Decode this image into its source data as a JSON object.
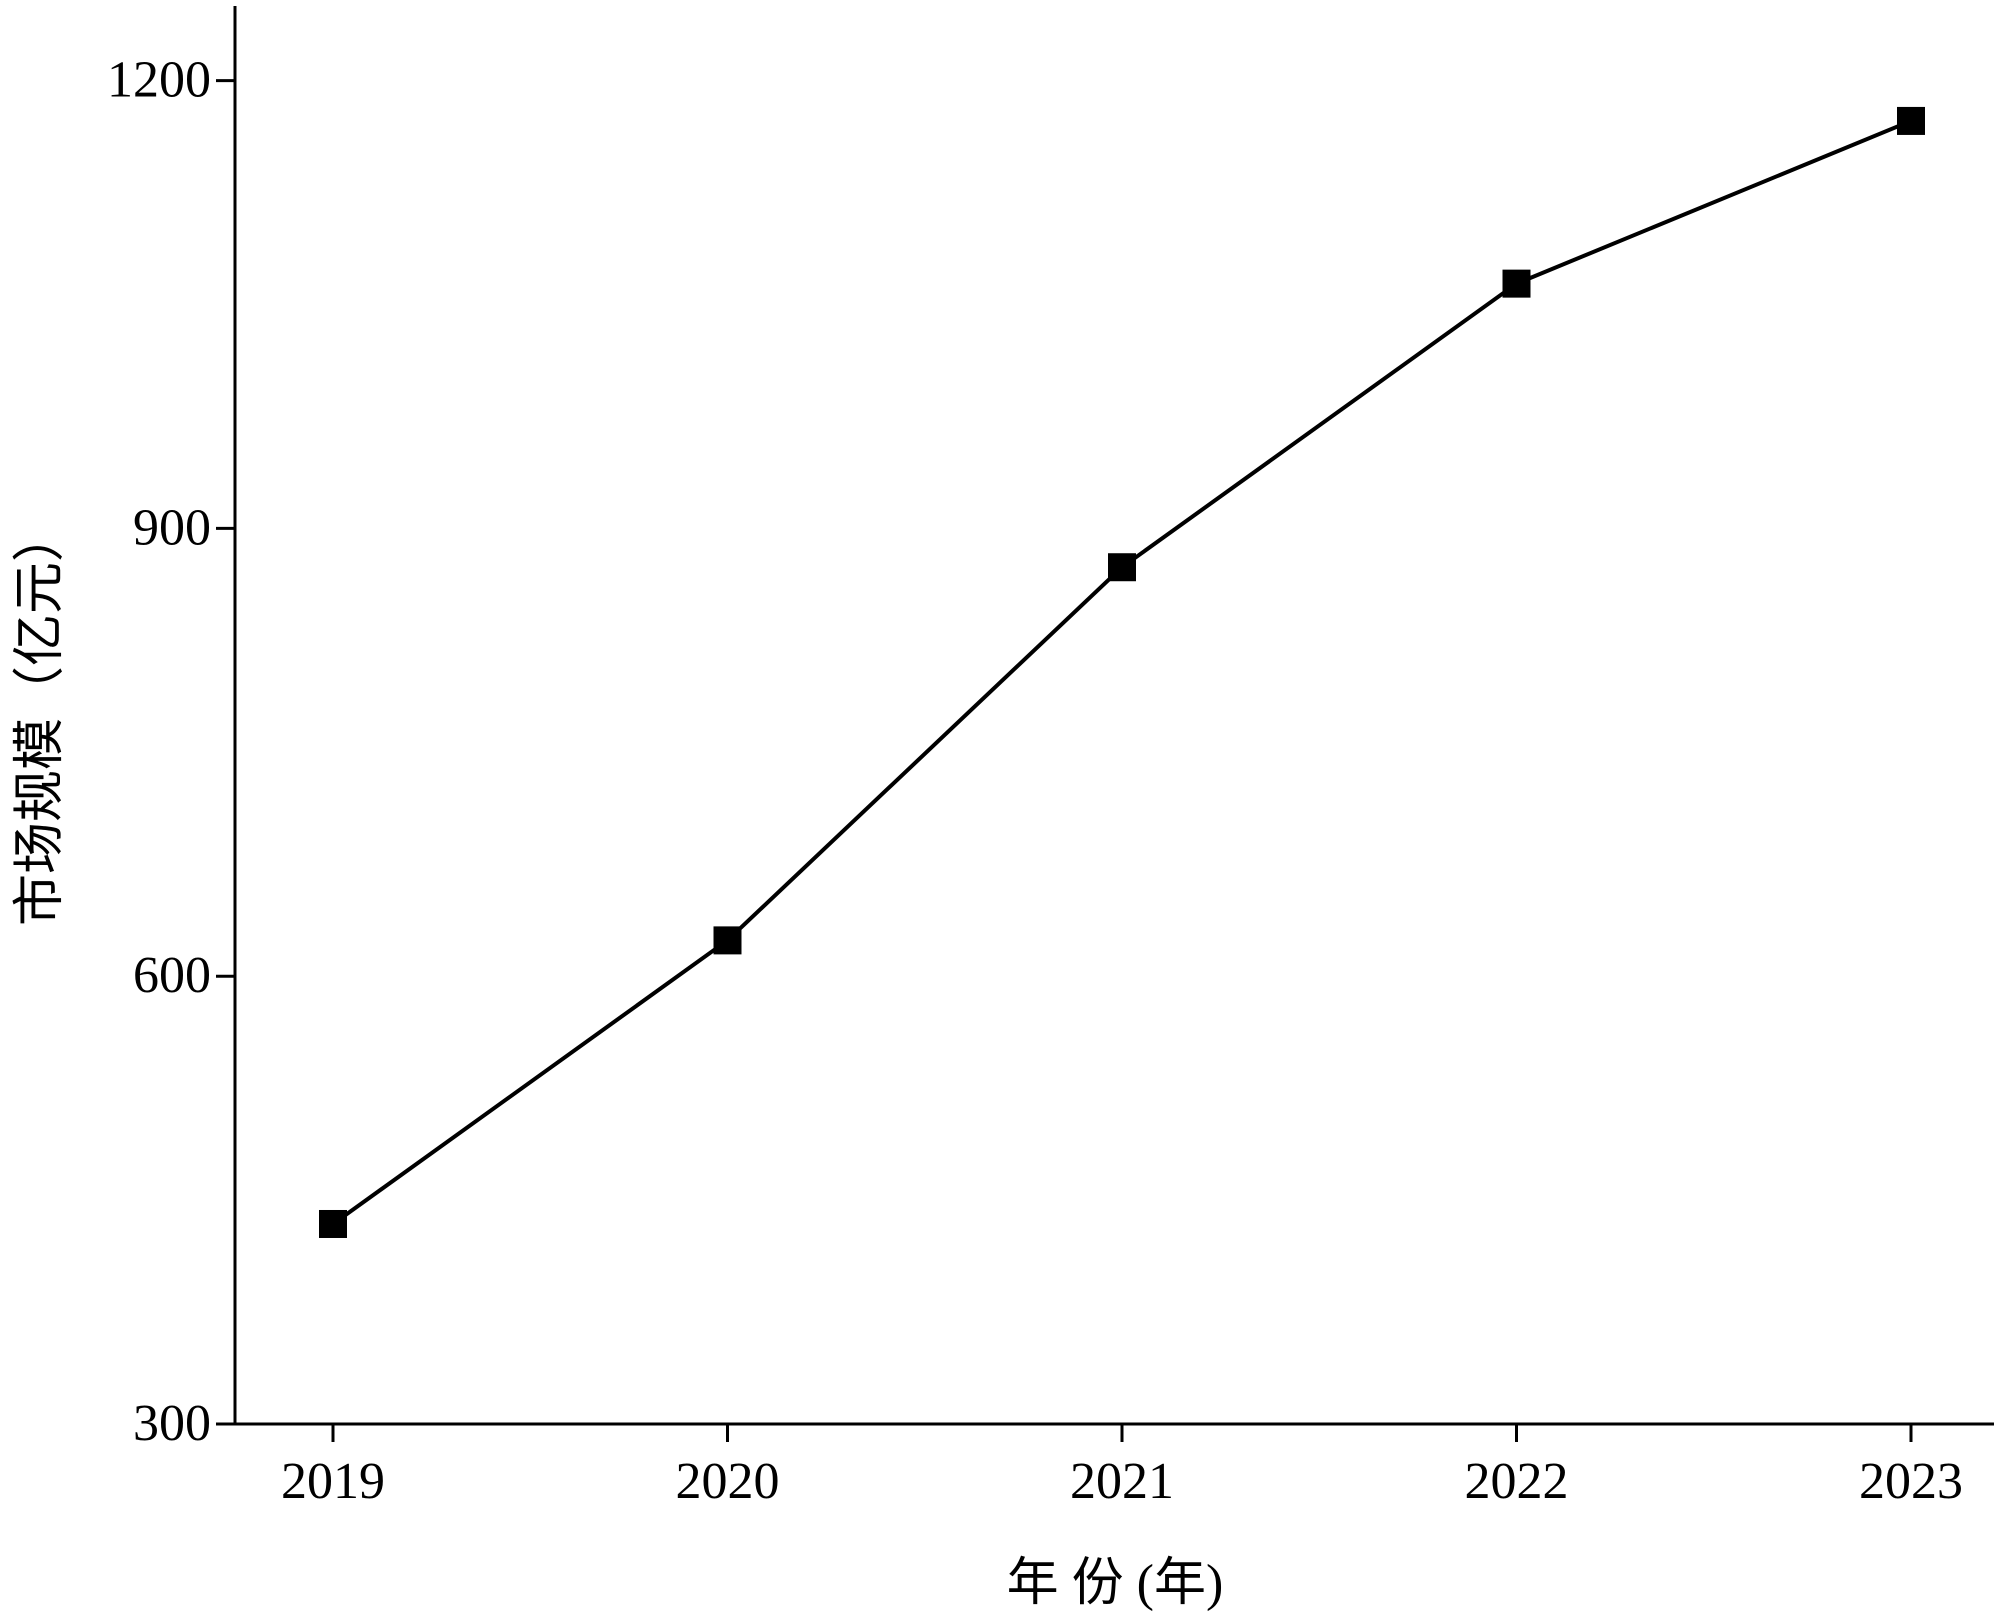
{
  "chart_data": {
    "type": "line",
    "x_label": "年 份 (年)",
    "y_label": "市场规模（亿元）",
    "categories": [
      "2019",
      "2020",
      "2021",
      "2022",
      "2023"
    ],
    "series": [
      {
        "color": "#000000",
        "values": [
          434,
          624,
          874,
          1064,
          1173
        ]
      }
    ],
    "ylim": [
      300,
      1250
    ],
    "yticks": [
      300,
      600,
      900,
      1200
    ],
    "grid": false
  }
}
